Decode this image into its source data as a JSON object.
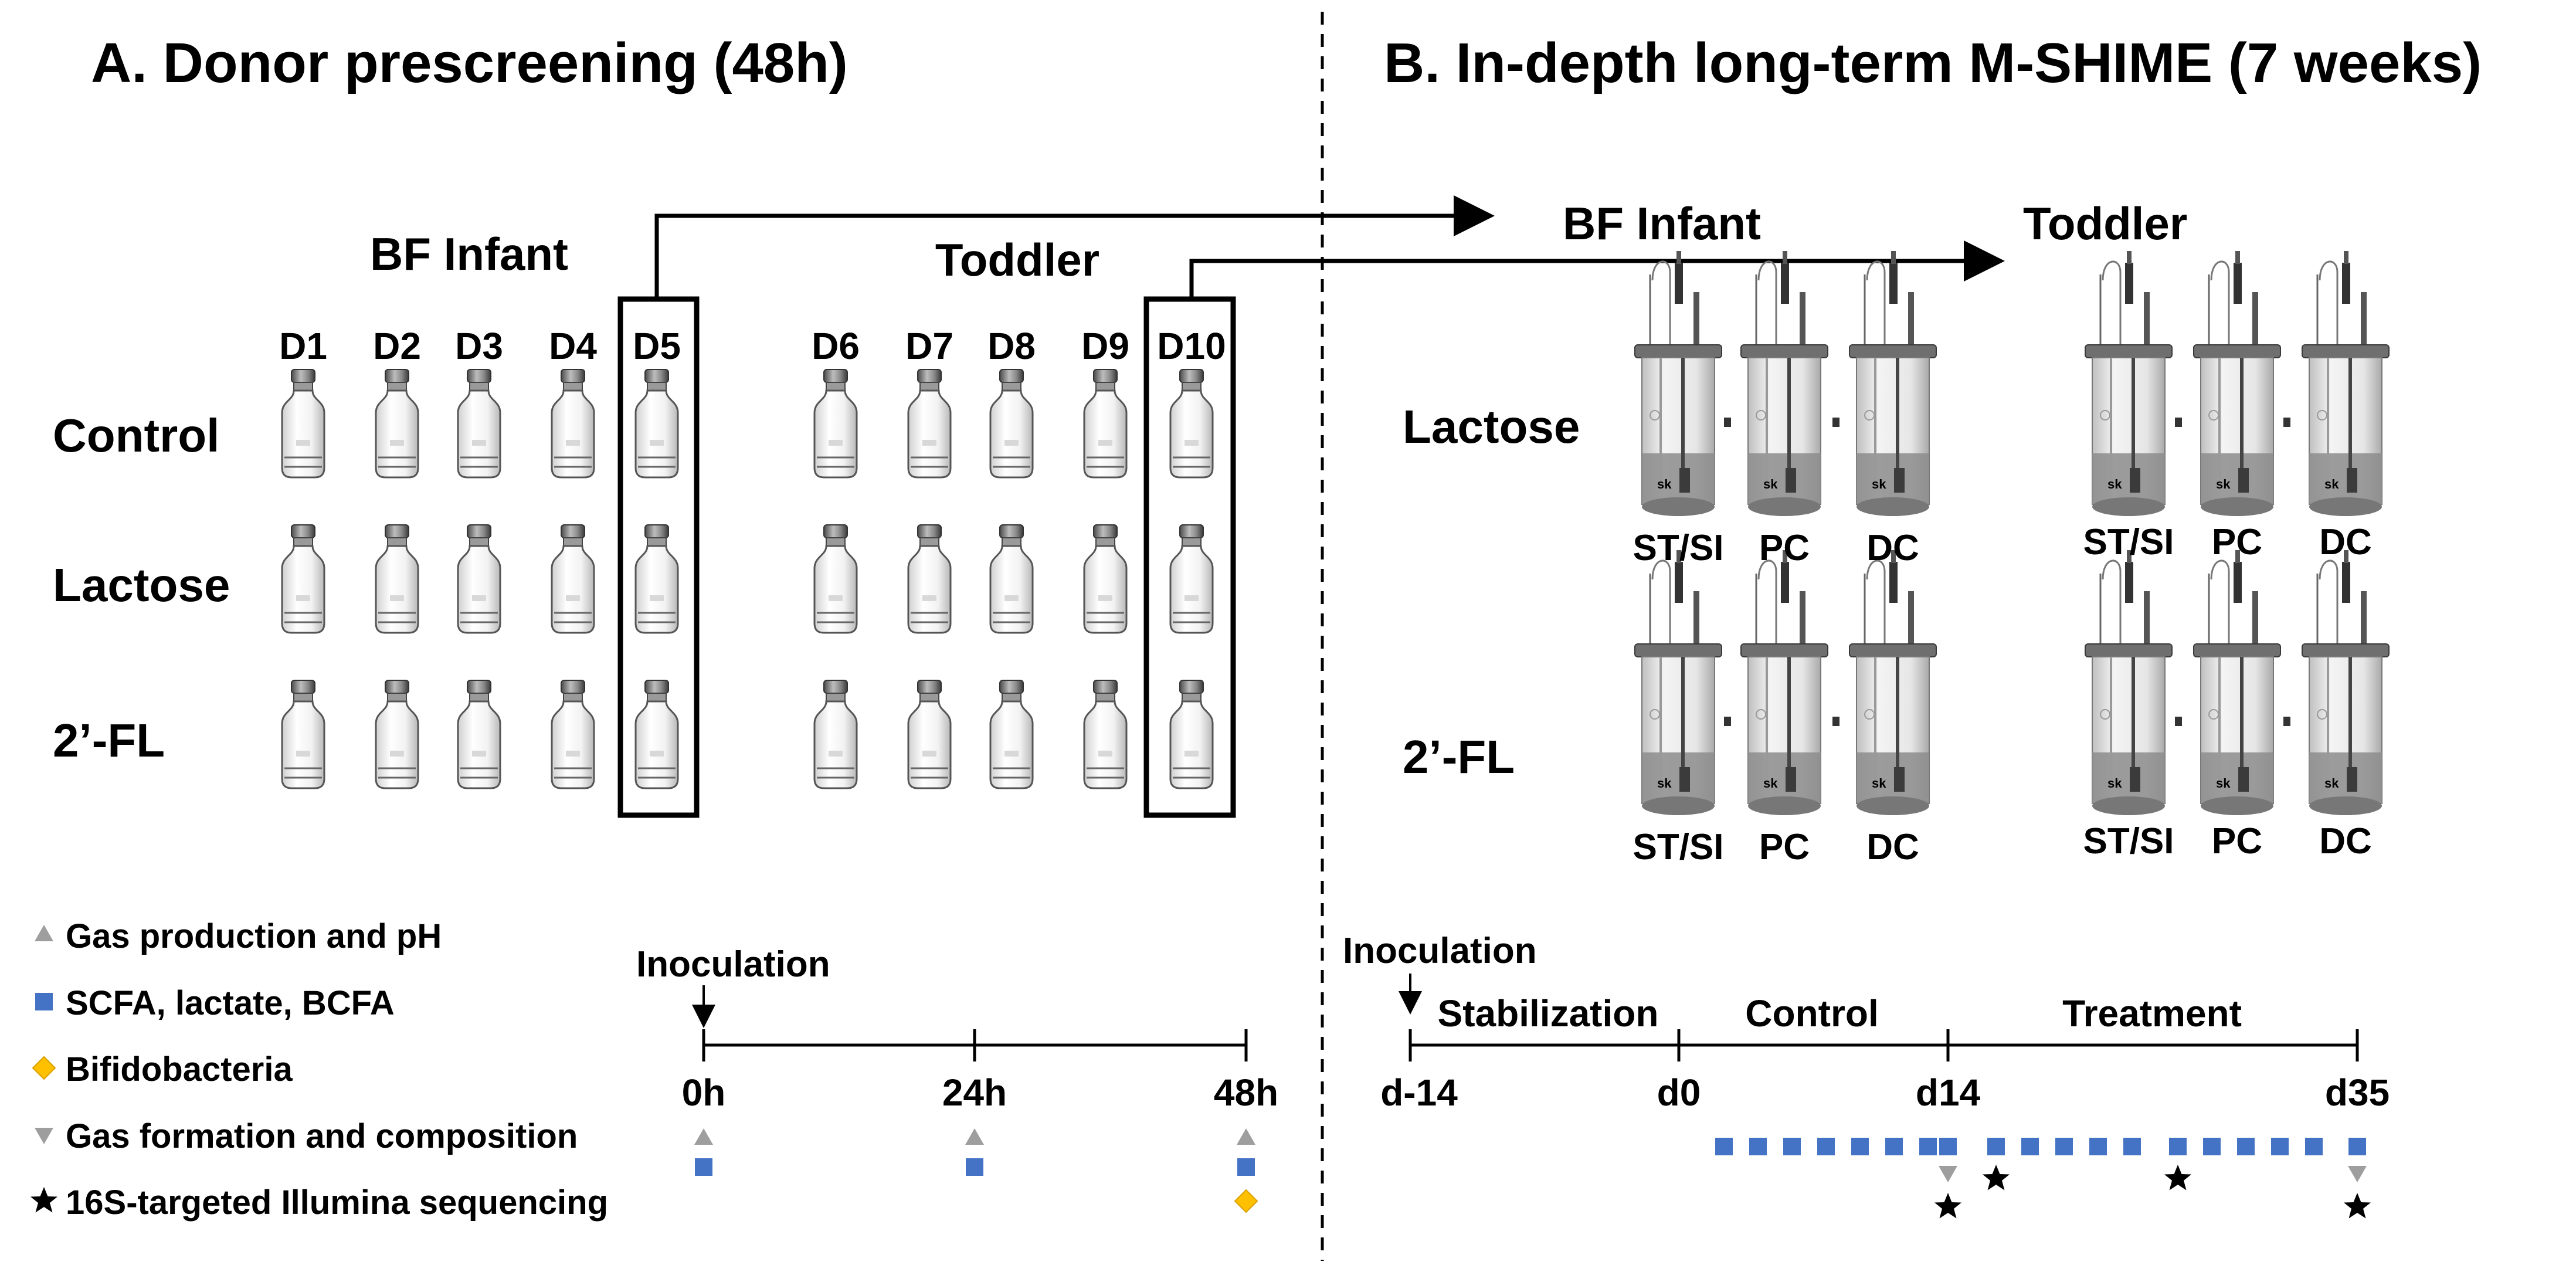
{
  "panel_a": {
    "title": "A. Donor prescreening (48h)",
    "groups": [
      "BF Infant",
      "Toddler"
    ],
    "donors": [
      "D1",
      "D2",
      "D3",
      "D4",
      "D5",
      "D6",
      "D7",
      "D8",
      "D9",
      "D10"
    ],
    "rows": [
      "Control",
      "Lactose",
      "2’-FL"
    ],
    "selected_donors": [
      "D5",
      "D10"
    ],
    "timeline": {
      "start_label": "Inoculation",
      "ticks": [
        "0h",
        "24h",
        "48h"
      ]
    }
  },
  "legend": [
    {
      "marker": "triangle-up-icon",
      "label": "Gas production and pH",
      "color": "#9e9e9e"
    },
    {
      "marker": "square-icon",
      "label": "SCFA, lactate, BCFA",
      "color": "#4472c4"
    },
    {
      "marker": "diamond-icon",
      "label": "Bifidobacteria",
      "color": "#ffc000"
    },
    {
      "marker": "triangle-down-icon",
      "label": "Gas formation and composition",
      "color": "#9e9e9e"
    },
    {
      "marker": "star-icon",
      "label": "16S-targeted Illumina sequencing",
      "color": "#000000"
    }
  ],
  "panel_b": {
    "title": "B. In-depth long-term M-SHIME (7 weeks)",
    "groups": [
      "BF Infant",
      "Toddler"
    ],
    "rows": [
      "Lactose",
      "2’-FL"
    ],
    "reactors": [
      "ST/SI",
      "PC",
      "DC"
    ],
    "reactor_tag": "sk",
    "timeline": {
      "start_label": "Inoculation",
      "phases": [
        "Stabilization",
        "Control",
        "Treatment"
      ],
      "ticks": [
        "d-14",
        "d0",
        "d14",
        "d35"
      ]
    }
  }
}
